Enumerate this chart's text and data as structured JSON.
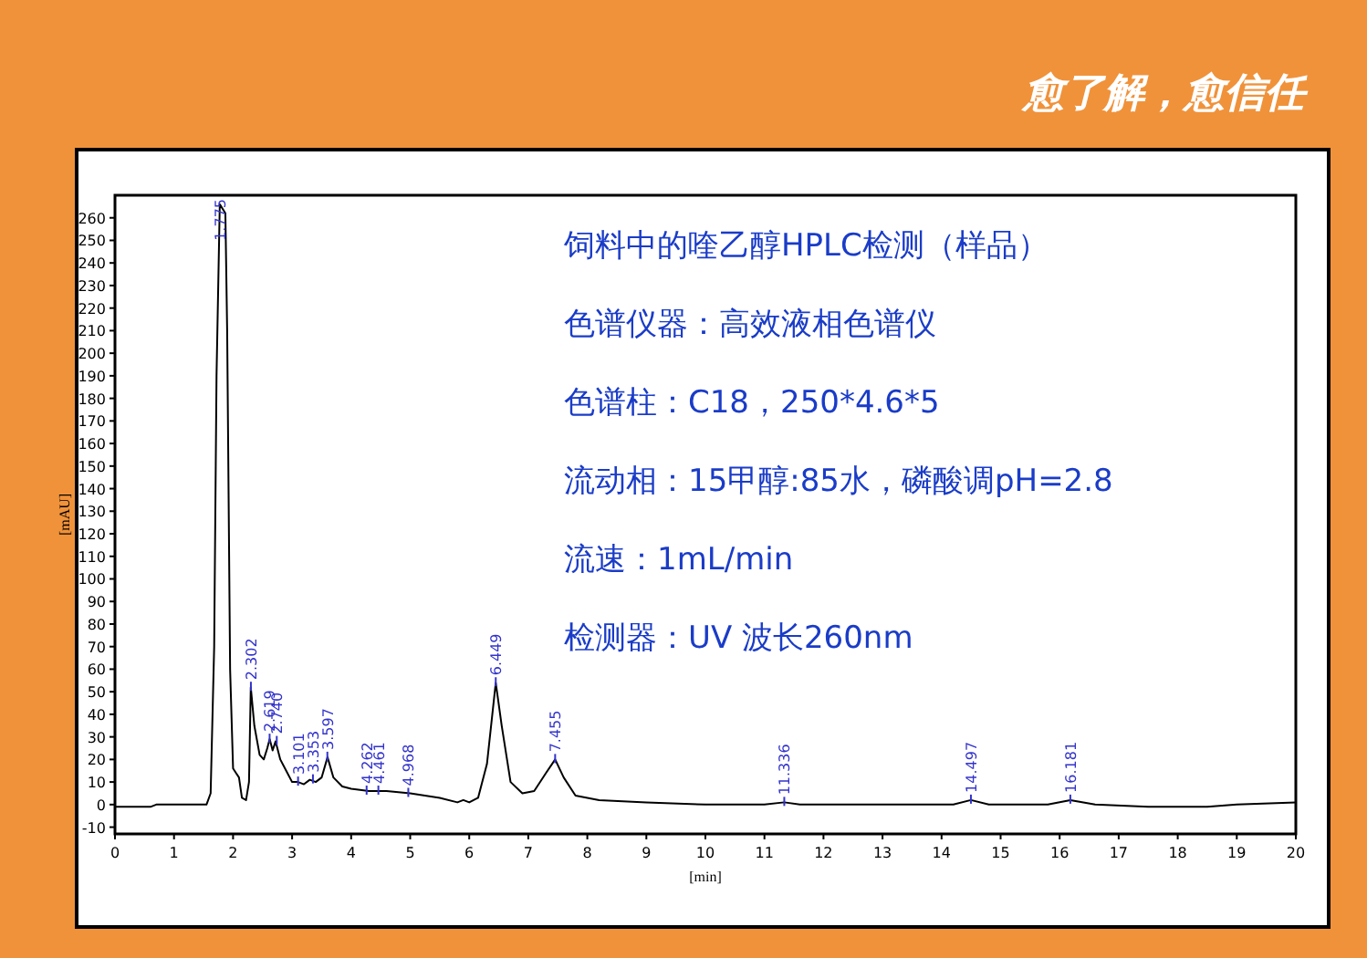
{
  "chart_data": {
    "type": "line",
    "title": "饲料中的喹乙醇HPLC检测（样品）",
    "xlabel": "[min]",
    "ylabel": "[mAU]",
    "xlim": [
      0,
      20
    ],
    "ylim": [
      -13,
      270
    ],
    "xticks": [
      0,
      1,
      2,
      3,
      4,
      5,
      6,
      7,
      8,
      9,
      10,
      11,
      12,
      13,
      14,
      15,
      16,
      17,
      18,
      19,
      20
    ],
    "yticks": [
      -10,
      0,
      10,
      20,
      30,
      40,
      50,
      60,
      70,
      80,
      90,
      100,
      110,
      120,
      130,
      140,
      150,
      160,
      170,
      180,
      190,
      200,
      210,
      220,
      230,
      240,
      250,
      260
    ],
    "grid": false,
    "marker": "none",
    "line_style": "solid",
    "series": [
      {
        "color": "#000000",
        "x": [
          0,
          0.6,
          0.7,
          1.55,
          1.62,
          1.68,
          1.72,
          1.775,
          1.87,
          1.9,
          1.95,
          2.0,
          2.05,
          2.1,
          2.15,
          2.22,
          2.27,
          2.3,
          2.36,
          2.45,
          2.52,
          2.58,
          2.62,
          2.67,
          2.72,
          2.8,
          2.9,
          3.0,
          3.1,
          3.2,
          3.3,
          3.4,
          3.5,
          3.6,
          3.7,
          3.85,
          4.0,
          4.3,
          4.6,
          5.0,
          5.5,
          5.8,
          5.9,
          6.0,
          6.15,
          6.3,
          6.449,
          6.55,
          6.7,
          6.9,
          7.1,
          7.3,
          7.455,
          7.6,
          7.8,
          8.2,
          9,
          10,
          11,
          11.336,
          11.6,
          13,
          14.2,
          14.497,
          14.8,
          15.8,
          16.181,
          16.6,
          17.5,
          18.5,
          19,
          20
        ],
        "values": [
          -1,
          -1,
          0,
          0,
          5,
          70,
          190,
          266,
          262,
          210,
          60,
          16,
          14,
          12,
          3,
          2,
          10,
          52,
          35,
          22,
          20,
          25,
          29,
          24,
          28,
          20,
          15,
          10,
          10,
          9,
          11,
          10,
          12,
          21,
          12,
          8,
          7,
          6,
          6,
          5,
          3,
          1,
          2,
          1,
          3,
          18,
          54,
          35,
          10,
          5,
          6,
          14,
          20,
          12,
          4,
          2,
          1,
          0,
          0,
          1,
          0,
          0,
          0,
          2,
          0,
          0,
          2,
          0,
          -1,
          -1,
          0,
          1
        ]
      }
    ],
    "annotations": [
      "愈了解，愈信任",
      "色谱仪器：高效液相色谱仪",
      "色谱柱：C18，250*4.6*5",
      "流动相：15甲醇:85水，磷酸调pH=2.8",
      "流速：1mL/min",
      "检测器：UV 波长260nm",
      {
        "text": "1.775",
        "x": 1.775,
        "y": 266
      },
      {
        "text": "2.302",
        "x": 2.302,
        "y": 52
      },
      {
        "text": "2.619",
        "x": 2.619,
        "y": 29
      },
      {
        "text": "2.740",
        "x": 2.74,
        "y": 28
      },
      {
        "text": "3.101",
        "x": 3.101,
        "y": 10
      },
      {
        "text": "3.353",
        "x": 3.353,
        "y": 11
      },
      {
        "text": "3.597",
        "x": 3.597,
        "y": 21
      },
      {
        "text": "4.262",
        "x": 4.262,
        "y": 6
      },
      {
        "text": "4.461",
        "x": 4.461,
        "y": 6
      },
      {
        "text": "4.968",
        "x": 4.968,
        "y": 5
      },
      {
        "text": "6.449",
        "x": 6.449,
        "y": 54
      },
      {
        "text": "7.455",
        "x": 7.455,
        "y": 20
      },
      {
        "text": "11.336",
        "x": 11.336,
        "y": 1
      },
      {
        "text": "14.497",
        "x": 14.497,
        "y": 2
      },
      {
        "text": "16.181",
        "x": 16.181,
        "y": 2
      }
    ]
  }
}
